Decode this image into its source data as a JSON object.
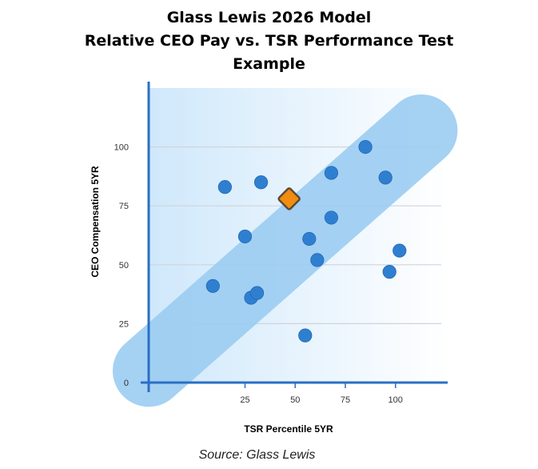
{
  "title_lines": [
    "Glass Lewis 2026 Model",
    "Relative CEO Pay vs. TSR Performance Test",
    "Example"
  ],
  "source": "Source: Glass Lewis",
  "colors": {
    "point": "#2f7fd1",
    "highlight": "#f28c10",
    "highlight_border": "#5a4a3a",
    "band": "#9ccdf2",
    "axis": "#2a6fc4",
    "background_left": "#cfe8fb",
    "background_right": "#ffffff",
    "grid": "#d0d4da"
  },
  "chart_data": {
    "type": "scatter",
    "xlabel": "TSR Percentile 5YR",
    "ylabel": "CEO Compensation 5YR",
    "xlim": [
      -23,
      126
    ],
    "ylim": [
      0,
      125
    ],
    "xticks": [
      25,
      50,
      75,
      100
    ],
    "yticks": [
      0,
      25,
      50,
      75,
      100
    ],
    "grid": "horizontal",
    "alignment_band": {
      "from": [
        -23,
        5
      ],
      "to": [
        113,
        107
      ]
    },
    "points": [
      {
        "x": 9,
        "y": 41
      },
      {
        "x": 15,
        "y": 83
      },
      {
        "x": 25,
        "y": 62
      },
      {
        "x": 28,
        "y": 36
      },
      {
        "x": 31,
        "y": 38
      },
      {
        "x": 33,
        "y": 85
      },
      {
        "x": 55,
        "y": 20
      },
      {
        "x": 57,
        "y": 61
      },
      {
        "x": 61,
        "y": 52
      },
      {
        "x": 68,
        "y": 89
      },
      {
        "x": 68,
        "y": 70
      },
      {
        "x": 85,
        "y": 100
      },
      {
        "x": 95,
        "y": 87
      },
      {
        "x": 97,
        "y": 47
      },
      {
        "x": 102,
        "y": 56
      }
    ],
    "highlight_point": {
      "x": 47,
      "y": 78
    }
  }
}
